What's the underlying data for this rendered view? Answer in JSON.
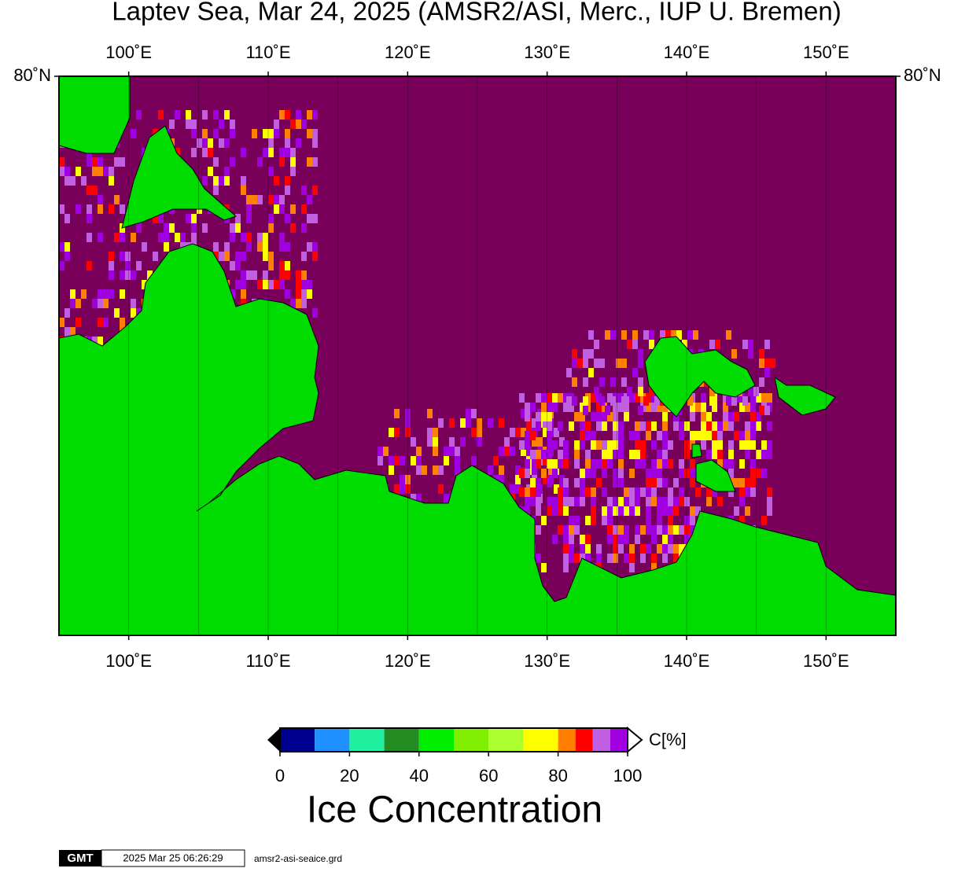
{
  "map": {
    "title": "Laptev Sea, Mar 24, 2025 (AMSR2/ASI, Merc., IUP U. Bremen)",
    "xlim": [
      95,
      155
    ],
    "xticks": [
      {
        "value": 100,
        "label": "100˚E"
      },
      {
        "value": 110,
        "label": "110˚E"
      },
      {
        "value": 120,
        "label": "120˚E"
      },
      {
        "value": 130,
        "label": "130˚E"
      },
      {
        "value": 140,
        "label": "140˚E"
      },
      {
        "value": 150,
        "label": "150˚E"
      }
    ],
    "xgrid": [
      100,
      105,
      110,
      115,
      120,
      125,
      130,
      135,
      140,
      145,
      150
    ],
    "yticks": [
      {
        "value": 80,
        "label": "80˚N"
      }
    ]
  },
  "colorbar": {
    "label": "C[%]",
    "title": "Ice Concentration",
    "range": [
      0,
      100
    ],
    "bounds": [
      0,
      10,
      20,
      30,
      40,
      50,
      60,
      70,
      80,
      85,
      90,
      95,
      100
    ],
    "colors": [
      "#000090",
      "#1e90ff",
      "#20f0a0",
      "#228b22",
      "#00ee00",
      "#7fee00",
      "#adff2f",
      "#ffff00",
      "#ff8000",
      "#ff0000",
      "#c060e0",
      "#a000e0"
    ],
    "ticks": [
      0,
      20,
      40,
      60,
      80,
      100
    ]
  },
  "footer": {
    "logo": "GMT",
    "timestamp": "2025 Mar 25 06:26:29",
    "file": "amsr2-asi-seaice.grd"
  }
}
